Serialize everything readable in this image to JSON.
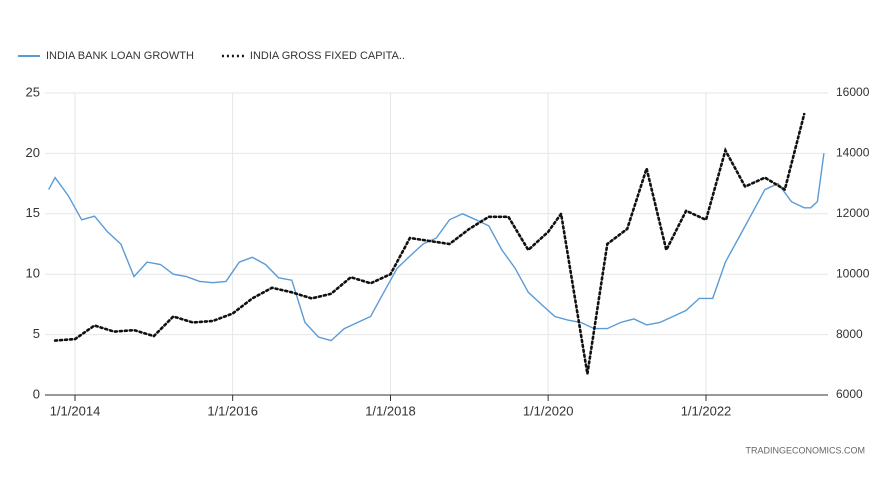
{
  "chart_data": {
    "type": "line",
    "source": "TRADINGECONOMICS.COM",
    "xlim": [
      "2013-08-15",
      "2023-07-20"
    ],
    "xticks": [
      {
        "value": "2014-01-01",
        "label": "1/1/2014"
      },
      {
        "value": "2016-01-01",
        "label": "1/1/2016"
      },
      {
        "value": "2018-01-01",
        "label": "1/1/2018"
      },
      {
        "value": "2020-01-01",
        "label": "1/1/2020"
      },
      {
        "value": "2022-01-01",
        "label": "1/1/2022"
      }
    ],
    "ylim": [
      0,
      25
    ],
    "yticks": [
      0,
      5,
      10,
      15,
      20,
      25
    ],
    "y2lim": [
      6000,
      16000
    ],
    "y2ticks": [
      6000,
      8000,
      10000,
      12000,
      14000,
      16000
    ],
    "grid": true,
    "legend": "top-left",
    "series": [
      {
        "name": "INDIA BANK LOAN GROWTH",
        "color": "#5b9bd5",
        "style": "solid",
        "x": [
          "2013-09-01",
          "2013-10-01",
          "2013-12-01",
          "2014-02-01",
          "2014-04-01",
          "2014-06-01",
          "2014-08-01",
          "2014-10-01",
          "2014-12-01",
          "2015-02-01",
          "2015-04-01",
          "2015-06-01",
          "2015-08-01",
          "2015-10-01",
          "2015-12-01",
          "2016-02-01",
          "2016-04-01",
          "2016-06-01",
          "2016-08-01",
          "2016-10-01",
          "2016-12-01",
          "2017-02-01",
          "2017-04-01",
          "2017-06-01",
          "2017-08-01",
          "2017-10-01",
          "2017-12-01",
          "2018-02-01",
          "2018-04-01",
          "2018-06-01",
          "2018-08-01",
          "2018-10-01",
          "2018-12-01",
          "2019-02-01",
          "2019-04-01",
          "2019-06-01",
          "2019-08-01",
          "2019-10-01",
          "2019-12-01",
          "2020-02-01",
          "2020-04-01",
          "2020-06-01",
          "2020-08-01",
          "2020-10-01",
          "2020-12-01",
          "2021-02-01",
          "2021-04-01",
          "2021-06-01",
          "2021-08-01",
          "2021-10-01",
          "2021-12-01",
          "2022-02-01",
          "2022-04-01",
          "2022-06-01",
          "2022-08-01",
          "2022-10-01",
          "2022-12-01",
          "2023-02-01",
          "2023-04-01",
          "2023-05-01",
          "2023-06-01",
          "2023-07-01"
        ],
        "values": [
          17,
          18,
          16.5,
          14.5,
          14.8,
          13.5,
          12.5,
          9.8,
          11,
          10.8,
          10,
          9.8,
          9.4,
          9.3,
          9.4,
          11,
          11.4,
          10.8,
          9.7,
          9.5,
          6,
          4.8,
          4.5,
          5.5,
          6,
          6.5,
          8.5,
          10.5,
          11.5,
          12.5,
          13,
          14.5,
          15,
          14.5,
          14,
          12,
          10.5,
          8.5,
          7.5,
          6.5,
          6.2,
          6,
          5.5,
          5.5,
          6,
          6.3,
          5.8,
          6,
          6.5,
          7,
          8,
          8,
          11,
          13,
          15,
          17,
          17.5,
          16,
          15.5,
          15.5,
          16,
          20
        ]
      },
      {
        "name": "INDIA GROSS FIXED CAPITA..",
        "color": "#111111",
        "style": "dotted",
        "axis": "y2",
        "x": [
          "2013-10-01",
          "2014-01-01",
          "2014-04-01",
          "2014-07-01",
          "2014-10-01",
          "2015-01-01",
          "2015-04-01",
          "2015-07-01",
          "2015-10-01",
          "2016-01-01",
          "2016-04-01",
          "2016-07-01",
          "2016-10-01",
          "2017-01-01",
          "2017-04-01",
          "2017-07-01",
          "2017-10-01",
          "2018-01-01",
          "2018-04-01",
          "2018-07-01",
          "2018-10-01",
          "2019-01-01",
          "2019-04-01",
          "2019-07-01",
          "2019-10-01",
          "2020-01-01",
          "2020-03-01",
          "2020-07-01",
          "2020-10-01",
          "2021-01-01",
          "2021-04-01",
          "2021-07-01",
          "2021-10-01",
          "2022-01-01",
          "2022-04-01",
          "2022-07-01",
          "2022-10-01",
          "2023-01-01",
          "2023-04-01"
        ],
        "values": [
          7800,
          7850,
          8300,
          8100,
          8150,
          7950,
          8600,
          8400,
          8450,
          8700,
          9200,
          9550,
          9400,
          9200,
          9350,
          9900,
          9700,
          10000,
          11200,
          11100,
          11000,
          11500,
          11900,
          11900,
          10800,
          11400,
          12000,
          6700,
          11000,
          11500,
          13500,
          10800,
          12100,
          11800,
          14100,
          12900,
          13200,
          12800,
          15300
        ]
      }
    ]
  }
}
